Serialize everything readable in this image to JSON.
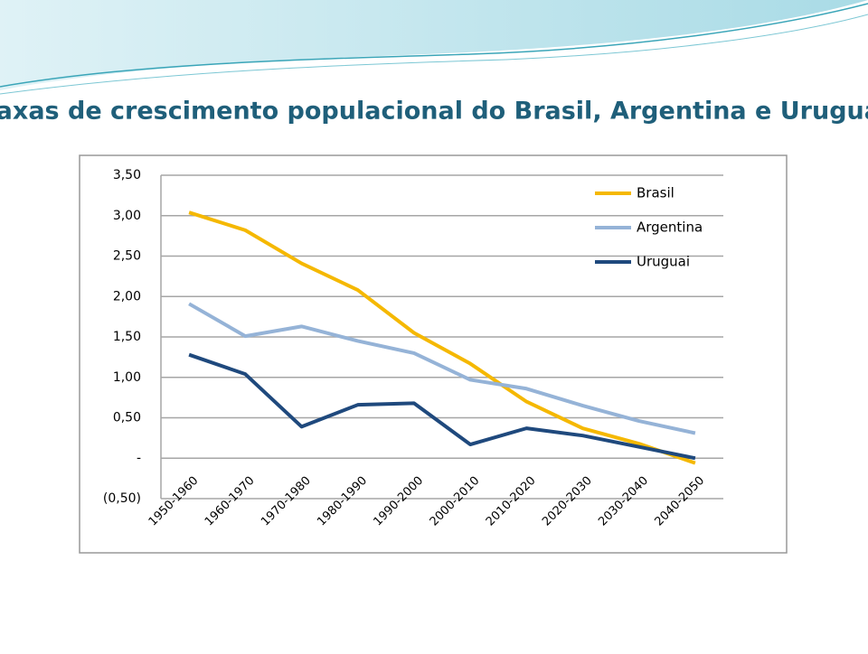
{
  "chart_data": {
    "type": "line",
    "title": "Taxas de crescimento populacional do Brasil, Argentina e Uruguai",
    "categories": [
      "1950-1960",
      "1960-1970",
      "1970-1980",
      "1980-1990",
      "1990-2000",
      "2000-2010",
      "2010-2020",
      "2020-2030",
      "2030-2040",
      "2040-2050"
    ],
    "series": [
      {
        "name": "Brasil",
        "color": "#f5b800",
        "values": [
          3.04,
          2.82,
          2.41,
          2.08,
          1.55,
          1.17,
          0.7,
          0.37,
          0.18,
          -0.06
        ]
      },
      {
        "name": "Argentina",
        "color": "#95b3d7",
        "values": [
          1.91,
          1.51,
          1.63,
          1.45,
          1.3,
          0.97,
          0.86,
          0.65,
          0.46,
          0.31
        ]
      },
      {
        "name": "Uruguai",
        "color": "#1f497d",
        "values": [
          1.28,
          1.04,
          0.39,
          0.66,
          0.68,
          0.17,
          0.37,
          0.28,
          0.14,
          0.0
        ]
      }
    ],
    "ylim": [
      -0.5,
      3.5
    ],
    "yticks": [
      {
        "value": -0.5,
        "label": "(0,50)"
      },
      {
        "value": 0,
        "label": "-"
      },
      {
        "value": 0.5,
        "label": "0,50"
      },
      {
        "value": 1,
        "label": "1,00"
      },
      {
        "value": 1.5,
        "label": "1,50"
      },
      {
        "value": 2,
        "label": "2,00"
      },
      {
        "value": 2.5,
        "label": "2,50"
      },
      {
        "value": 3,
        "label": "3,00"
      },
      {
        "value": 3.5,
        "label": "3,50"
      }
    ],
    "grid": true,
    "legend": "top-right"
  }
}
